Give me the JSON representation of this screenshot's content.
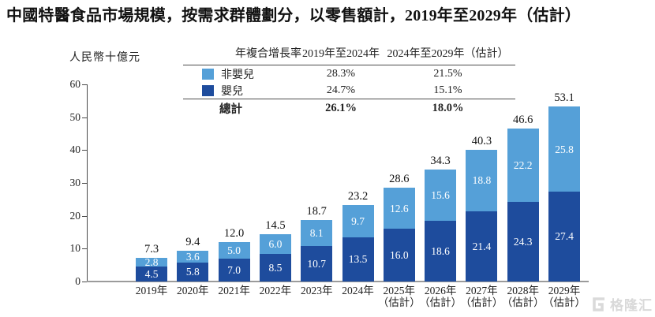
{
  "title": "中國特醫食品市場規模，按需求群體劃分，以零售額計，2019年至2029年（估計）",
  "y_axis_title": "人民幣十億元",
  "cagr_table": {
    "header": [
      "年複合增長率",
      "2019年至2024年",
      "2024年至2029年（估計）"
    ],
    "rows": [
      {
        "label": "非嬰兒",
        "swatch_color": "#55A0D8",
        "cagr_2019_2024": "28.3%",
        "cagr_2024_2029": "21.5%"
      },
      {
        "label": "嬰兒",
        "swatch_color": "#1E4C9D",
        "cagr_2019_2024": "24.7%",
        "cagr_2024_2029": "15.1%"
      }
    ],
    "total": {
      "label": "總計",
      "cagr_2019_2024": "26.1%",
      "cagr_2024_2029": "18.0%"
    }
  },
  "chart_data": {
    "type": "bar",
    "stacked": true,
    "title": "中國特醫食品市場規模，按需求群體劃分，以零售額計，2019年至2029年（估計）",
    "ylabel": "人民幣十億元",
    "ylim": [
      0,
      60
    ],
    "yticks": [
      0,
      10,
      20,
      30,
      40,
      50,
      60
    ],
    "grid": false,
    "legend_position": "top-table",
    "categories": [
      {
        "label": "2019年",
        "sub": ""
      },
      {
        "label": "2020年",
        "sub": ""
      },
      {
        "label": "2021年",
        "sub": ""
      },
      {
        "label": "2022年",
        "sub": ""
      },
      {
        "label": "2023年",
        "sub": ""
      },
      {
        "label": "2024年",
        "sub": ""
      },
      {
        "label": "2025年",
        "sub": "（估計）"
      },
      {
        "label": "2026年",
        "sub": "（估計）"
      },
      {
        "label": "2027年",
        "sub": "（估計）"
      },
      {
        "label": "2028年",
        "sub": "（估計）"
      },
      {
        "label": "2029年",
        "sub": "（估計）"
      }
    ],
    "series": [
      {
        "name": "嬰兒",
        "color": "#1E4C9D",
        "values": [
          4.5,
          5.8,
          7.0,
          8.5,
          10.7,
          13.5,
          16.0,
          18.6,
          21.4,
          24.3,
          27.4
        ]
      },
      {
        "name": "非嬰兒",
        "color": "#55A0D8",
        "values": [
          2.8,
          3.6,
          5.0,
          6.0,
          8.1,
          9.7,
          12.6,
          15.6,
          18.8,
          22.2,
          25.8
        ]
      }
    ],
    "totals": [
      7.3,
      9.4,
      12.0,
      14.5,
      18.7,
      23.2,
      28.6,
      34.3,
      40.3,
      46.6,
      53.1
    ]
  },
  "watermark": {
    "text": "格隆汇"
  }
}
